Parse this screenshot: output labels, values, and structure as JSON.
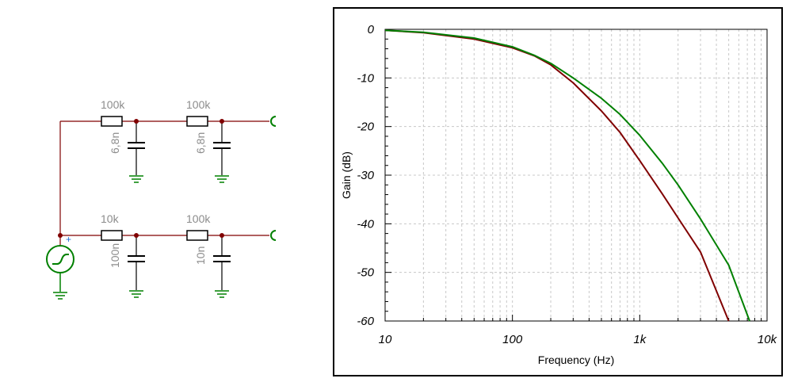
{
  "schematic": {
    "top_row": {
      "r1": "100k",
      "c1": "6,8n",
      "r2": "100k",
      "c2": "6,8n"
    },
    "bottom_row": {
      "r1": "10k",
      "c1": "100n",
      "r2": "100k",
      "c2": "10n"
    },
    "source_polarity": "+"
  },
  "chart_data": {
    "type": "line",
    "xlabel": "Frequency (Hz)",
    "ylabel": "Gain (dB)",
    "xscale": "log",
    "xlim": [
      10,
      10000
    ],
    "ylim": [
      -60,
      0
    ],
    "x_ticks": [
      "10",
      "100",
      "1k",
      "10k"
    ],
    "y_ticks": [
      "0",
      "-10",
      "-20",
      "-30",
      "-40",
      "-50",
      "-60"
    ],
    "grid": true,
    "series": [
      {
        "color": "#800000",
        "x": [
          10,
          20,
          50,
          100,
          150,
          200,
          300,
          500,
          700,
          1000,
          1500,
          2000,
          3000,
          5000
        ],
        "y": [
          -0.2,
          -0.7,
          -2.0,
          -3.8,
          -5.5,
          -7.3,
          -11.0,
          -16.8,
          -21.2,
          -27.0,
          -33.8,
          -38.8,
          -45.8,
          -60.0
        ]
      },
      {
        "color": "#008000",
        "x": [
          10,
          20,
          50,
          100,
          150,
          200,
          300,
          500,
          700,
          1000,
          1500,
          2000,
          3000,
          5000,
          7300
        ],
        "y": [
          -0.2,
          -0.6,
          -1.8,
          -3.6,
          -5.4,
          -7.0,
          -10.0,
          -14.2,
          -17.5,
          -21.8,
          -27.5,
          -32.0,
          -39.0,
          -48.5,
          -60.0
        ]
      }
    ]
  }
}
